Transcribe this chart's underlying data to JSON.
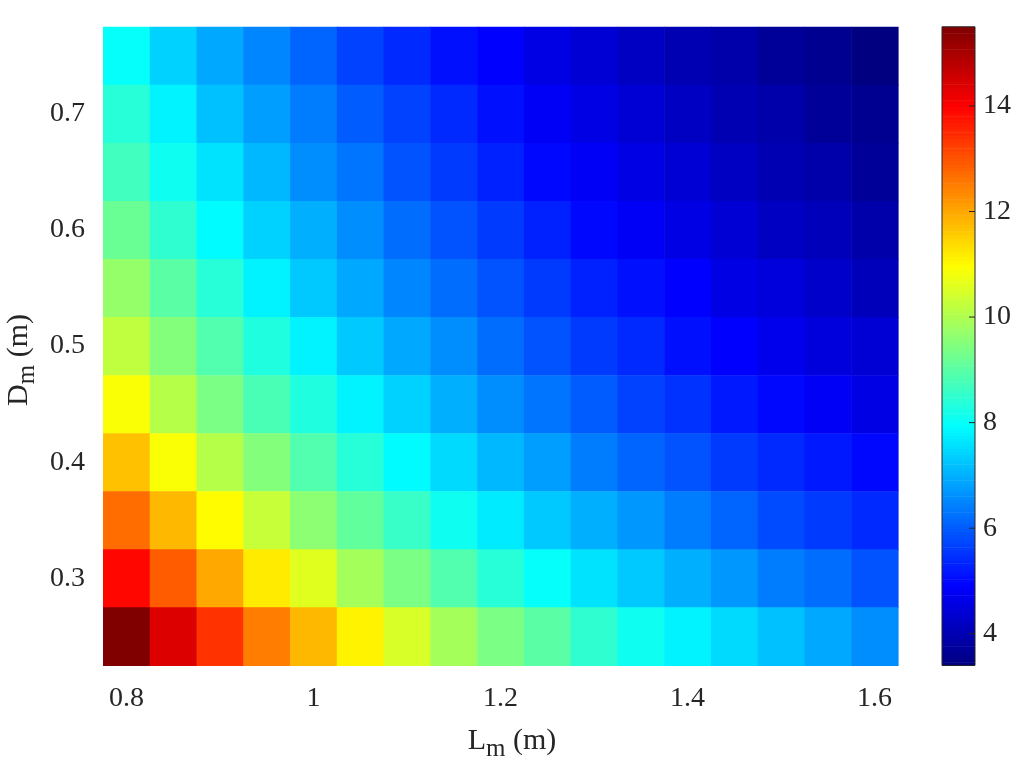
{
  "chart_data": {
    "type": "heatmap",
    "xlabel": "L$_{m}$ (m)",
    "ylabel": "D$_{m}$ (m)",
    "categories": [
      "0.8",
      null,
      null,
      null,
      "1",
      null,
      null,
      null,
      "1.2",
      null,
      null,
      null,
      "1.4",
      null,
      null,
      null,
      "1.6"
    ],
    "y_categories": [
      null,
      "0.7",
      null,
      "0.6",
      null,
      "0.5",
      null,
      "0.4",
      null,
      "0.3",
      null
    ],
    "cells": [
      [
        8.0,
        7.4,
        6.9,
        6.5,
        6.1,
        5.7,
        5.4,
        5.1,
        4.9,
        4.6,
        4.4,
        4.2,
        4.0,
        3.9,
        3.7,
        3.6,
        3.4
      ],
      [
        8.4,
        7.8,
        7.2,
        6.8,
        6.4,
        6.0,
        5.7,
        5.4,
        5.1,
        4.8,
        4.6,
        4.4,
        4.2,
        4.0,
        3.9,
        3.7,
        3.6
      ],
      [
        8.7,
        8.1,
        7.6,
        7.1,
        6.6,
        6.3,
        5.9,
        5.6,
        5.3,
        5.0,
        4.8,
        4.6,
        4.4,
        4.2,
        4.0,
        3.9,
        3.7
      ],
      [
        9.2,
        8.5,
        7.9,
        7.4,
        7.0,
        6.6,
        6.2,
        5.9,
        5.6,
        5.3,
        5.0,
        4.8,
        4.6,
        4.4,
        4.2,
        4.1,
        3.9
      ],
      [
        9.7,
        9.0,
        8.4,
        7.8,
        7.3,
        6.9,
        6.5,
        6.2,
        5.9,
        5.6,
        5.3,
        5.1,
        4.9,
        4.6,
        4.5,
        4.3,
        4.1
      ],
      [
        10.2,
        9.5,
        8.9,
        8.3,
        7.8,
        7.3,
        6.9,
        6.6,
        6.2,
        5.9,
        5.6,
        5.4,
        5.1,
        4.9,
        4.7,
        4.5,
        4.4
      ],
      [
        10.9,
        10.1,
        9.4,
        8.8,
        8.3,
        7.8,
        7.4,
        7.0,
        6.6,
        6.3,
        6.0,
        5.7,
        5.5,
        5.2,
        5.0,
        4.8,
        4.6
      ],
      [
        11.7,
        10.9,
        10.1,
        9.5,
        8.9,
        8.4,
        7.9,
        7.5,
        7.1,
        6.8,
        6.4,
        6.1,
        5.9,
        5.6,
        5.4,
        5.2,
        5.0
      ],
      [
        12.7,
        11.8,
        11.0,
        10.3,
        9.6,
        9.1,
        8.6,
        8.1,
        7.7,
        7.3,
        7.0,
        6.7,
        6.4,
        6.1,
        5.8,
        5.6,
        5.4
      ],
      [
        13.9,
        12.9,
        12.0,
        11.2,
        10.6,
        9.9,
        9.4,
        8.9,
        8.4,
        8.0,
        7.6,
        7.3,
        7.0,
        6.7,
        6.4,
        6.2,
        5.9
      ],
      [
        15.5,
        14.4,
        13.4,
        12.5,
        11.8,
        11.1,
        10.5,
        9.9,
        9.4,
        9.0,
        8.5,
        8.1,
        7.8,
        7.5,
        7.2,
        6.9,
        6.6
      ]
    ],
    "clim": [
      3.4,
      15.5
    ],
    "cticks": [
      4,
      6,
      8,
      10,
      12,
      14
    ]
  }
}
